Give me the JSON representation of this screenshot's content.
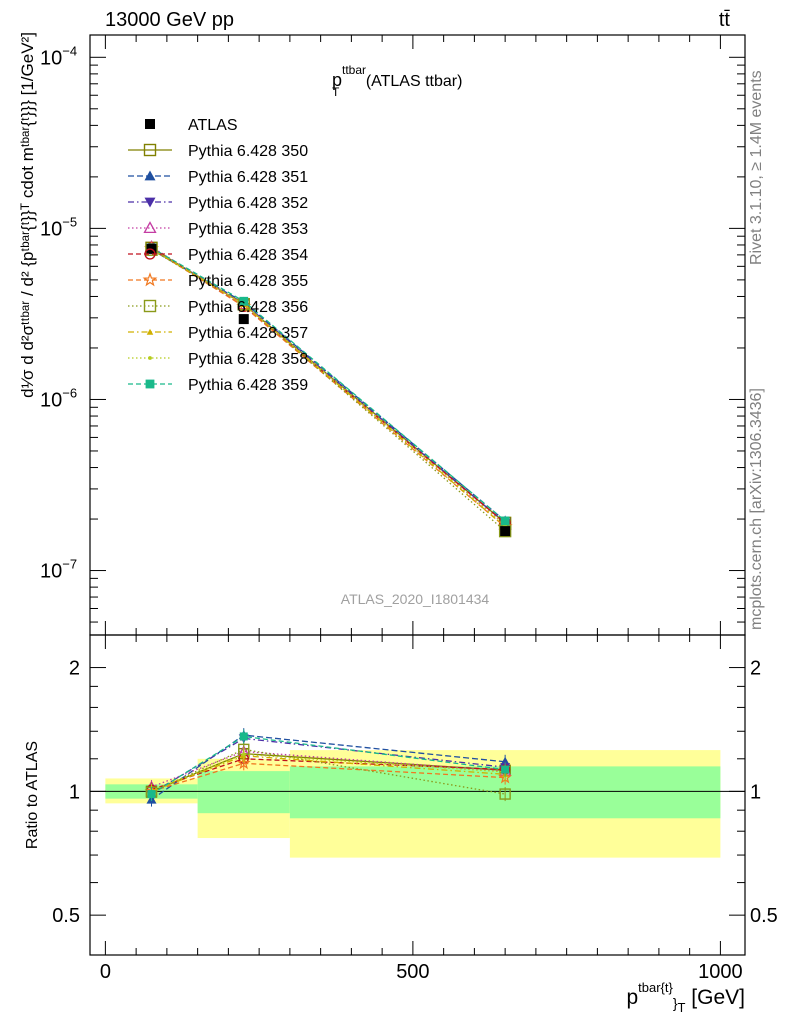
{
  "header": {
    "left": "13000 GeV pp",
    "right": "tt̄"
  },
  "side_labels": {
    "top": "Rivet 3.1.10, ≥ 1.4M events",
    "bottom": "mcplots.cern.ch [arXiv:1306.3436]"
  },
  "watermark": "ATLAS_2020_I1801434",
  "main_title": {
    "base": "p",
    "sup": "ttbar",
    "sub": "T",
    "suffix": " (ATLAS ttbar)"
  },
  "ylabel_text": "d¹⁄σ d d²σᵗᵗᵇᵃʳ / d² {pᵗᵇᵃʳ{ᵗ}}ᵀ cdot mᵗᵇᵃʳ{ᵗ}}} [1/GeV²]",
  "ratio_ylabel": "Ratio to ATLAS",
  "xlabel": {
    "base": "p",
    "sup": "tbar{t}",
    "sub": "}",
    "subT": "T",
    "suffix": " [GeV]"
  },
  "x_ticks": [
    "0",
    "500",
    "1000"
  ],
  "y_ticks": [
    {
      "base": "10",
      "exp": "−4"
    },
    {
      "base": "10",
      "exp": "−5"
    },
    {
      "base": "10",
      "exp": "−6"
    },
    {
      "base": "10",
      "exp": "−7"
    }
  ],
  "ratio_ticks": [
    "2",
    "1",
    "0.5"
  ],
  "chart_data": {
    "type": "line",
    "x": [
      75,
      225,
      650
    ],
    "bin_edges": [
      0,
      150,
      300,
      1000
    ],
    "xlim": [
      -25,
      1040
    ],
    "ylim": [
      4.2e-08,
      0.000135
    ],
    "ylog": true,
    "ratio_ylim": [
      0.4,
      2.4
    ],
    "ratio_ylog": true,
    "data": {
      "name": "ATLAS",
      "values": [
        7.6e-06,
        2.95e-06,
        1.7e-07
      ],
      "color": "#000000"
    },
    "band_inner": [
      [
        0.96,
        1.04
      ],
      [
        0.885,
        1.12
      ],
      [
        0.86,
        1.15
      ]
    ],
    "band_outer": [
      [
        0.935,
        1.075
      ],
      [
        0.77,
        1.2
      ],
      [
        0.69,
        1.26
      ]
    ],
    "series": [
      {
        "name": "Pythia 6.428 350",
        "color": "#808000",
        "marker": "square-open",
        "dash": "",
        "values": [
          7.7e-06,
          3.6e-06,
          1.9e-07
        ],
        "ratio": [
          1.0,
          1.235,
          1.125
        ]
      },
      {
        "name": "Pythia 6.428 351",
        "color": "#1f4fa0",
        "marker": "triangle-up",
        "dash": "6,3",
        "values": [
          7.5e-06,
          3.7e-06,
          1.95e-07
        ],
        "ratio": [
          0.955,
          1.37,
          1.18
        ]
      },
      {
        "name": "Pythia 6.428 352",
        "color": "#4b2fa8",
        "marker": "triangle-down",
        "dash": "6,3,1.5,3",
        "values": [
          7.6e-06,
          3.65e-06,
          1.9e-07
        ],
        "ratio": [
          0.99,
          1.345,
          1.145
        ]
      },
      {
        "name": "Pythia 6.428 353",
        "color": "#c43da3",
        "marker": "triangle-open",
        "dash": "1.5,2.5",
        "values": [
          7.8e-06,
          3.6e-06,
          1.85e-07
        ],
        "ratio": [
          1.025,
          1.25,
          1.12
        ]
      },
      {
        "name": "Pythia 6.428 354",
        "color": "#c0101e",
        "marker": "circle-open",
        "dash": "5,3",
        "values": [
          7.7e-06,
          3.5e-06,
          1.9e-07
        ],
        "ratio": [
          1.01,
          1.2,
          1.13
        ]
      },
      {
        "name": "Pythia 6.428 355",
        "color": "#f07820",
        "marker": "star-open",
        "dash": "5,3",
        "values": [
          7.6e-06,
          3.5e-06,
          1.8e-07
        ],
        "ratio": [
          1.0,
          1.17,
          1.08
        ]
      },
      {
        "name": "Pythia 6.428 356",
        "color": "#8a9a1a",
        "marker": "square-open",
        "dash": "1.5,2.5",
        "values": [
          7.5e-06,
          3.6e-06,
          1.7e-07
        ],
        "ratio": [
          0.995,
          1.265,
          0.985
        ]
      },
      {
        "name": "Pythia 6.428 357",
        "color": "#d0b000",
        "marker": "tri-small",
        "dash": "6,3,1.5,3",
        "values": [
          7.6e-06,
          3.6e-06,
          1.8e-07
        ],
        "ratio": [
          1.0,
          1.22,
          1.1
        ]
      },
      {
        "name": "Pythia 6.428 358",
        "color": "#b5cc1c",
        "marker": "dot",
        "dash": "1.5,2.5",
        "values": [
          7.7e-06,
          3.6e-06,
          1.85e-07
        ],
        "ratio": [
          1.005,
          1.23,
          1.115
        ]
      },
      {
        "name": "Pythia 6.428 359",
        "color": "#19b98a",
        "marker": "square-filled",
        "dash": "5,3",
        "values": [
          7.7e-06,
          3.75e-06,
          1.95e-07
        ],
        "ratio": [
          0.985,
          1.36,
          1.13
        ]
      }
    ]
  }
}
